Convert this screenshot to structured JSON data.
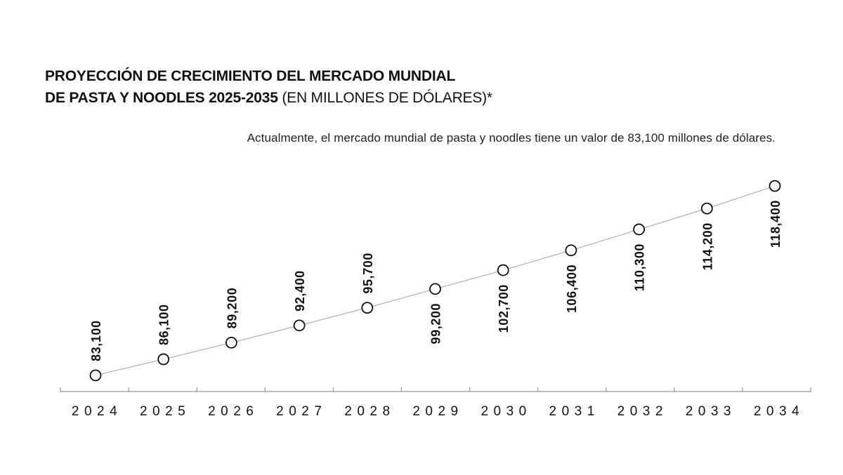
{
  "chart_data": {
    "type": "line",
    "title": "PROYECCIÓN DE CRECIMIENTO DEL MERCADO MUNDIAL",
    "title_line2": "DE PASTA Y NOODLES 2025-2035",
    "title_unit": " (EN MILLONES DE DÓLARES)*",
    "subtitle": "Actualmente, el mercado mundial de pasta y noodles tiene un valor de 83,100 millones de dólares.",
    "categories": [
      "2024",
      "2025",
      "2026",
      "2027",
      "2028",
      "2029",
      "2030",
      "2031",
      "2032",
      "2033",
      "2034"
    ],
    "values": [
      83100,
      86100,
      89200,
      92400,
      95700,
      99200,
      102700,
      106400,
      110300,
      114200,
      118400
    ],
    "data_labels": [
      "83,100",
      "86,100",
      "89,200",
      "92,400",
      "95,700",
      "99,200",
      "102,700",
      "106,400",
      "110,300",
      "114,200",
      "118,400"
    ],
    "label_position": [
      "above",
      "above",
      "above",
      "above",
      "above",
      "below",
      "below",
      "below",
      "below",
      "below",
      "below"
    ],
    "xlabel": "",
    "ylabel": "",
    "grid": false,
    "legend": "none",
    "colors": {
      "line": "#b5b5b5",
      "marker_stroke": "#111111",
      "marker_fill": "#ffffff",
      "axis": "#999999",
      "text": "#111111"
    }
  }
}
